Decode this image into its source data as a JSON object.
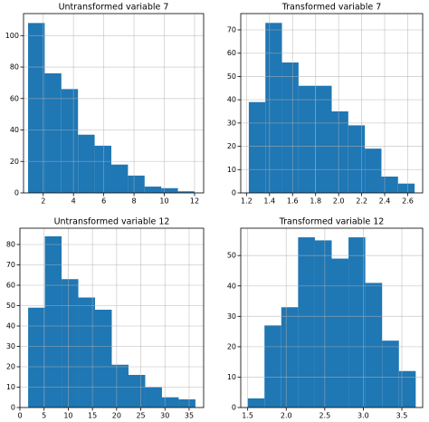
{
  "chart_data": [
    {
      "type": "histogram",
      "title": "Untransformed variable 7",
      "color": "#1f77b4",
      "grid": true,
      "bins": [
        1.0,
        2.1,
        3.2,
        4.3,
        5.4,
        6.5,
        7.6,
        8.7,
        9.8,
        10.9,
        12.0
      ],
      "values": [
        108,
        76,
        66,
        37,
        30,
        18,
        11,
        4,
        3,
        1
      ],
      "xlim": [
        0.7,
        12.6
      ],
      "xticks": [
        2,
        4,
        6,
        8,
        10,
        12
      ],
      "ylim": [
        0,
        114
      ],
      "yticks": [
        0,
        20,
        40,
        60,
        80,
        100
      ]
    },
    {
      "type": "histogram",
      "title": "Transformed variable 7",
      "color": "#1f77b4",
      "grid": true,
      "bins": [
        1.22,
        1.364,
        1.508,
        1.652,
        1.796,
        1.94,
        2.084,
        2.228,
        2.372,
        2.516,
        2.66
      ],
      "values": [
        39,
        73,
        56,
        46,
        46,
        35,
        29,
        19,
        7,
        4
      ],
      "xlim": [
        1.15,
        2.73
      ],
      "xticks": [
        1.2,
        1.4,
        1.6,
        1.8,
        {
          "value": 2,
          "label": "2.0"
        },
        2.2,
        2.4,
        2.6
      ],
      "ylim": [
        0,
        77
      ],
      "yticks": [
        0,
        10,
        20,
        30,
        40,
        50,
        60,
        70
      ]
    },
    {
      "type": "histogram",
      "title": "Untransformed variable 12",
      "color": "#1f77b4",
      "grid": true,
      "bins": [
        1.7,
        5.16,
        8.62,
        12.08,
        15.54,
        19.0,
        22.46,
        25.92,
        29.38,
        32.84,
        36.3
      ],
      "values": [
        49,
        84,
        63,
        54,
        48,
        21,
        16,
        10,
        5,
        4
      ],
      "xlim": [
        0,
        38
      ],
      "xticks": [
        0,
        5,
        10,
        15,
        20,
        25,
        30,
        35
      ],
      "ylim": [
        0,
        88
      ],
      "yticks": [
        0,
        10,
        20,
        30,
        40,
        50,
        60,
        70,
        80
      ]
    },
    {
      "type": "histogram",
      "title": "Transformed variable 12",
      "color": "#1f77b4",
      "grid": true,
      "bins": [
        1.5,
        1.718,
        1.936,
        2.154,
        2.372,
        2.59,
        2.808,
        3.026,
        3.244,
        3.462,
        3.68
      ],
      "values": [
        3,
        27,
        33,
        56,
        55,
        49,
        56,
        41,
        22,
        12
      ],
      "xlim": [
        1.41,
        3.77
      ],
      "xticks": [
        1.5,
        {
          "value": 2,
          "label": "2.0"
        },
        2.5,
        {
          "value": 3,
          "label": "3.0"
        },
        3.5
      ],
      "ylim": [
        0,
        59
      ],
      "yticks": [
        0,
        10,
        20,
        30,
        40,
        50
      ]
    }
  ]
}
